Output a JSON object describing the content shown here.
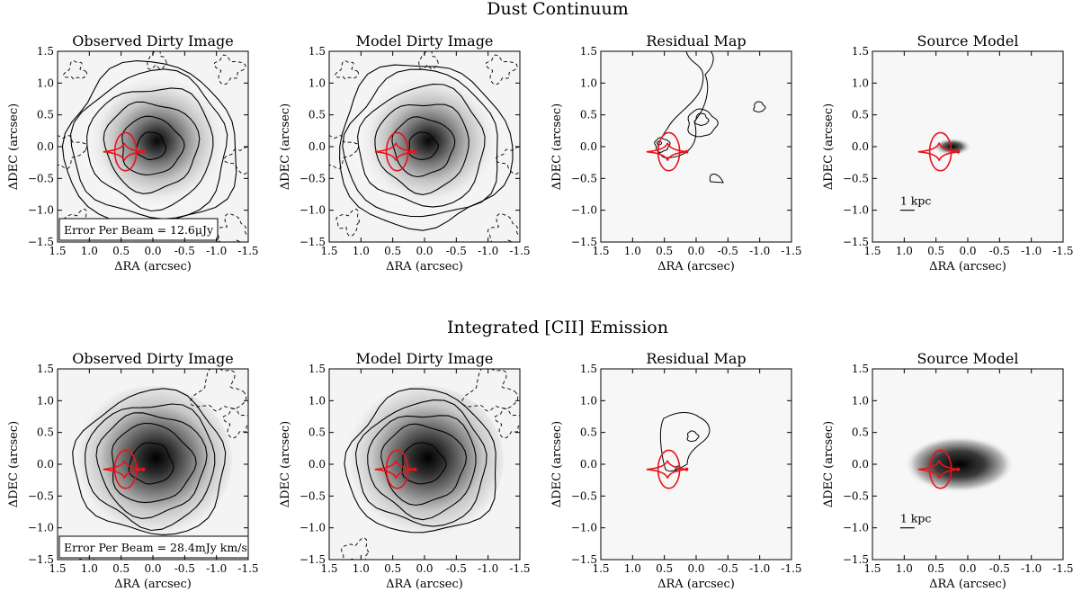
{
  "figure": {
    "rows": [
      {
        "title": "Dust Continuum",
        "panels": [
          {
            "title": "Observed Dirty Image",
            "kind": "observed",
            "error_note": "Error Per Beam = 12.6μJy",
            "scale_bar": ""
          },
          {
            "title": "Model Dirty Image",
            "kind": "model",
            "error_note": "",
            "scale_bar": ""
          },
          {
            "title": "Residual Map",
            "kind": "residual",
            "error_note": "",
            "scale_bar": ""
          },
          {
            "title": "Source Model",
            "kind": "source",
            "error_note": "",
            "scale_bar": "1 kpc"
          }
        ]
      },
      {
        "title": "Integrated [CII] Emission",
        "panels": [
          {
            "title": "Observed Dirty Image",
            "kind": "observed",
            "error_note": "Error Per Beam = 28.4mJy km/s",
            "scale_bar": ""
          },
          {
            "title": "Model Dirty Image",
            "kind": "model",
            "error_note": "",
            "scale_bar": ""
          },
          {
            "title": "Residual Map",
            "kind": "residual",
            "error_note": "",
            "scale_bar": ""
          },
          {
            "title": "Source Model",
            "kind": "source",
            "error_note": "",
            "scale_bar": "1 kpc"
          }
        ]
      }
    ]
  },
  "chart_data": {
    "type": "heatmap",
    "xlabel": "ΔRA (arcsec)",
    "ylabel": "ΔDEC (arcsec)",
    "xlim": [
      1.5,
      -1.5
    ],
    "ylim": [
      -1.5,
      1.5
    ],
    "x_ticks": [
      1.5,
      1.0,
      0.5,
      0.0,
      -0.5,
      -1.0,
      -1.5
    ],
    "y_ticks": [
      -1.5,
      -1.0,
      -0.5,
      0.0,
      0.5,
      1.0,
      1.5
    ],
    "x_tick_labels": [
      "1.5",
      "1.0",
      "0.5",
      "0.0",
      "-0.5",
      "-1.0",
      "-1.5"
    ],
    "y_tick_labels": [
      "−1.5",
      "−1.0",
      "−0.5",
      "0.0",
      "0.5",
      "1.0",
      "1.5"
    ],
    "colormap": "gray_r",
    "caustic_color": "#e8141c",
    "critical_curve": {
      "center": [
        0.43,
        -0.08
      ],
      "semi_axes": [
        0.17,
        0.3
      ]
    },
    "caustic": {
      "center": [
        0.45,
        -0.08
      ],
      "half_width": 0.2,
      "half_height": 0.14,
      "tip_x": 0.78,
      "tip_x_right": 0.15
    },
    "brightness_peak": [
      0.0,
      0.05
    ],
    "source_peak": [
      0.3,
      0.0
    ]
  }
}
